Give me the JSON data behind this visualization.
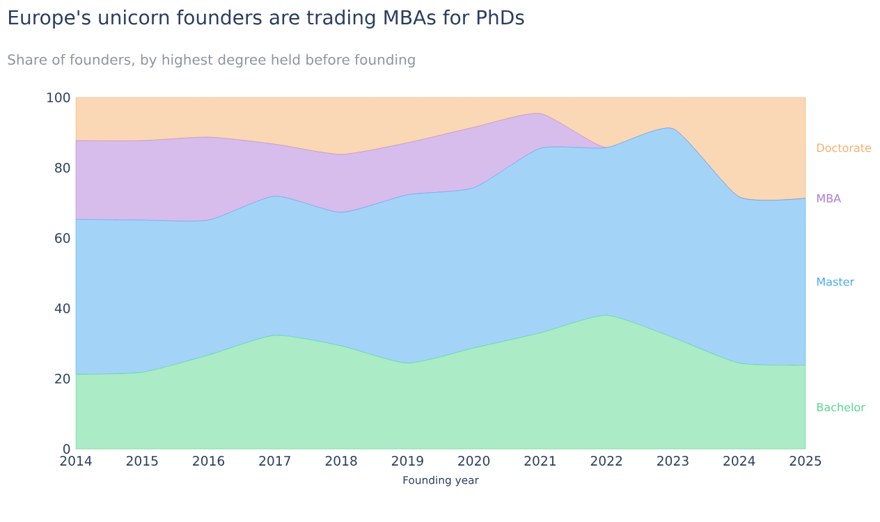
{
  "chart_data": {
    "type": "area",
    "stacked": true,
    "title": "Europe's unicorn founders are trading MBAs for PhDs",
    "subtitle": "Share of founders, by highest degree held before founding",
    "xlabel": "Founding year",
    "x": [
      2014,
      2015,
      2016,
      2017,
      2018,
      2019,
      2020,
      2021,
      2022,
      2023,
      2024,
      2025
    ],
    "series": [
      {
        "name": "Bachelor",
        "color": "#abebc6",
        "values": [
          21.2,
          21.8,
          26.7,
          32.3,
          29.3,
          24.4,
          28.7,
          33.0,
          38.0,
          31.7,
          24.4,
          23.8
        ]
      },
      {
        "name": "Master",
        "color": "#a3d4f7",
        "values": [
          44.1,
          43.3,
          38.4,
          39.6,
          38.0,
          47.9,
          45.6,
          52.5,
          47.7,
          59.4,
          47.3,
          47.5
        ]
      },
      {
        "name": "MBA",
        "color": "#d7bdeb",
        "values": [
          22.4,
          22.6,
          23.6,
          14.8,
          16.5,
          14.8,
          17.2,
          9.9,
          0,
          0,
          0,
          0
        ]
      },
      {
        "name": "Doctorate",
        "color": "#fad7b5",
        "values": [
          12.3,
          12.3,
          11.3,
          13.3,
          16.2,
          12.9,
          8.5,
          4.6,
          14.3,
          8.9,
          28.3,
          28.7
        ]
      }
    ],
    "xlim": [
      2014,
      2025
    ],
    "xticks": [
      2014,
      2015,
      2016,
      2017,
      2018,
      2019,
      2020,
      2021,
      2022,
      2023,
      2024,
      2025
    ],
    "ylim": [
      0,
      100
    ],
    "yticks": [
      0,
      20,
      40,
      60,
      80,
      100
    ]
  }
}
